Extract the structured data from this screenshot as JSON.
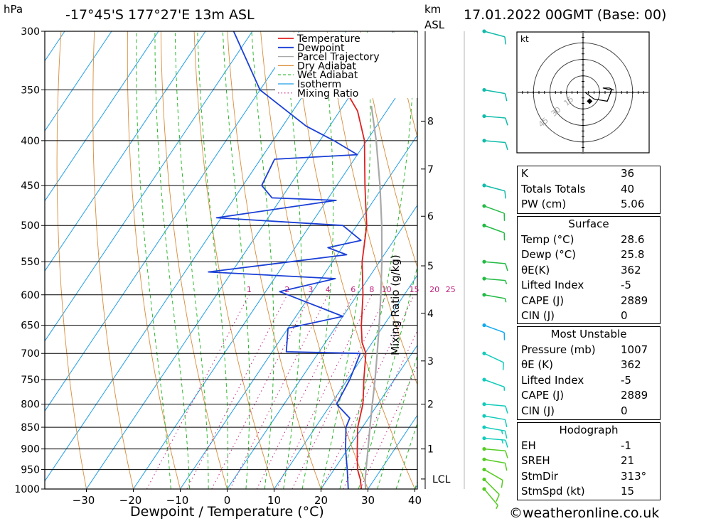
{
  "header": {
    "pressure_unit": "hPa",
    "location": "-17°45'S  177°27'E  13m  ASL",
    "height_unit_km": "km",
    "height_unit_asl": "ASL",
    "datetime": "17.01.2022  00GMT  (Base: 00)"
  },
  "footer": {
    "copyright": "©weatheronline.co.uk"
  },
  "chart_data": {
    "type": "line",
    "xlabel": "Dewpoint / Temperature (°C)",
    "ylabel": "Mixing Ratio (g/kg)",
    "pressure_levels": [
      300,
      350,
      400,
      450,
      500,
      550,
      600,
      650,
      700,
      750,
      800,
      850,
      900,
      950,
      1000
    ],
    "temp_ticks": [
      -30,
      -20,
      -10,
      0,
      10,
      20,
      30,
      40
    ],
    "km_ticks": [
      {
        "label": "8",
        "p": 380
      },
      {
        "label": "7",
        "p": 431
      },
      {
        "label": "6",
        "p": 488
      },
      {
        "label": "5",
        "p": 556
      },
      {
        "label": "4",
        "p": 630
      },
      {
        "label": "3",
        "p": 714
      },
      {
        "label": "2",
        "p": 800
      },
      {
        "label": "1",
        "p": 900
      }
    ],
    "lcl": {
      "label": "LCL",
      "p": 974
    },
    "mixing_ratio_labels": [
      "1",
      "2",
      "3",
      "4",
      "6",
      "8",
      "10",
      "15",
      "20",
      "25"
    ],
    "mixing_ratio_values": [
      1,
      2,
      3,
      4,
      6,
      8,
      10,
      15,
      20,
      25
    ],
    "legend": [
      "Temperature",
      "Dewpoint",
      "Parcel Trajectory",
      "Dry Adiabat",
      "Wet Adiabat",
      "Isotherm",
      "Mixing Ratio"
    ],
    "colors": {
      "temperature": "#e02020",
      "dewpoint": "#1a3fd6",
      "parcel": "#a9a9a9",
      "dry_adiabat": "#d98c3a",
      "wet_adiabat": "#19b319",
      "isotherm": "#1f9ee6",
      "mixing_ratio": "#c0207f"
    },
    "temperature_profile": [
      {
        "p": 1000,
        "t": 28.6
      },
      {
        "p": 975,
        "t": 27.0
      },
      {
        "p": 950,
        "t": 25.0
      },
      {
        "p": 925,
        "t": 23.5
      },
      {
        "p": 900,
        "t": 22.0
      },
      {
        "p": 850,
        "t": 19.0
      },
      {
        "p": 800,
        "t": 16.8
      },
      {
        "p": 775,
        "t": 15.2
      },
      {
        "p": 750,
        "t": 13.5
      },
      {
        "p": 700,
        "t": 10.2
      },
      {
        "p": 680,
        "t": 7.8
      },
      {
        "p": 650,
        "t": 5.2
      },
      {
        "p": 600,
        "t": 1.2
      },
      {
        "p": 550,
        "t": -3.7
      },
      {
        "p": 500,
        "t": -7.9
      },
      {
        "p": 470,
        "t": -11.5
      },
      {
        "p": 450,
        "t": -14.0
      },
      {
        "p": 400,
        "t": -20.5
      },
      {
        "p": 370,
        "t": -26.2
      },
      {
        "p": 355,
        "t": -30.4
      }
    ],
    "dewpoint_profile": [
      {
        "p": 1000,
        "t": 25.8
      },
      {
        "p": 950,
        "t": 22.8
      },
      {
        "p": 900,
        "t": 19.5
      },
      {
        "p": 850,
        "t": 16.5
      },
      {
        "p": 830,
        "t": 16.0
      },
      {
        "p": 800,
        "t": 11.2
      },
      {
        "p": 750,
        "t": 10.5
      },
      {
        "p": 700,
        "t": 9.0
      },
      {
        "p": 697,
        "t": -7.0
      },
      {
        "p": 655,
        "t": -10.0
      },
      {
        "p": 635,
        "t": 0.0
      },
      {
        "p": 595,
        "t": -17.0
      },
      {
        "p": 575,
        "t": -7.0
      },
      {
        "p": 565,
        "t": -35.0
      },
      {
        "p": 540,
        "t": -8.0
      },
      {
        "p": 530,
        "t": -13.0
      },
      {
        "p": 520,
        "t": -7.0
      },
      {
        "p": 500,
        "t": -13.0
      },
      {
        "p": 490,
        "t": -41.0
      },
      {
        "p": 468,
        "t": -18.0
      },
      {
        "p": 465,
        "t": -32.0
      },
      {
        "p": 450,
        "t": -36.0
      },
      {
        "p": 420,
        "t": -37.0
      },
      {
        "p": 415,
        "t": -20.0
      },
      {
        "p": 400,
        "t": -27.0
      },
      {
        "p": 385,
        "t": -35.0
      },
      {
        "p": 350,
        "t": -50.0
      },
      {
        "p": 300,
        "t": -64.0
      }
    ],
    "parcel_profile": [
      {
        "p": 1000,
        "t": 29.5
      },
      {
        "p": 974,
        "t": 28.0
      },
      {
        "p": 950,
        "t": 26.8
      },
      {
        "p": 900,
        "t": 24.3
      },
      {
        "p": 850,
        "t": 21.6
      },
      {
        "p": 800,
        "t": 18.8
      },
      {
        "p": 750,
        "t": 15.9
      },
      {
        "p": 700,
        "t": 12.6
      },
      {
        "p": 650,
        "t": 9.0
      },
      {
        "p": 600,
        "t": 5.0
      },
      {
        "p": 550,
        "t": 0.5
      },
      {
        "p": 500,
        "t": -4.7
      },
      {
        "p": 450,
        "t": -10.8
      },
      {
        "p": 400,
        "t": -18.0
      },
      {
        "p": 365,
        "t": -24.0
      }
    ],
    "winds": [
      {
        "p": 1000,
        "dir": 140,
        "spd": 8
      },
      {
        "p": 975,
        "dir": 135,
        "spd": 10
      },
      {
        "p": 950,
        "dir": 120,
        "spd": 12
      },
      {
        "p": 925,
        "dir": 100,
        "spd": 12
      },
      {
        "p": 900,
        "dir": 95,
        "spd": 14
      },
      {
        "p": 875,
        "dir": 95,
        "spd": 15
      },
      {
        "p": 850,
        "dir": 100,
        "spd": 15
      },
      {
        "p": 825,
        "dir": 100,
        "spd": 14
      },
      {
        "p": 800,
        "dir": 95,
        "spd": 12
      },
      {
        "p": 750,
        "dir": 110,
        "spd": 8
      },
      {
        "p": 700,
        "dir": 115,
        "spd": 10
      },
      {
        "p": 650,
        "dir": 110,
        "spd": 10
      },
      {
        "p": 600,
        "dir": 100,
        "spd": 6
      },
      {
        "p": 575,
        "dir": 95,
        "spd": 6
      },
      {
        "p": 550,
        "dir": 95,
        "spd": 10
      },
      {
        "p": 500,
        "dir": 110,
        "spd": 12
      },
      {
        "p": 475,
        "dir": 110,
        "spd": 14
      },
      {
        "p": 450,
        "dir": 105,
        "spd": 12
      },
      {
        "p": 400,
        "dir": 95,
        "spd": 14
      },
      {
        "p": 375,
        "dir": 95,
        "spd": 12
      },
      {
        "p": 350,
        "dir": 100,
        "spd": 10
      },
      {
        "p": 300,
        "dir": 105,
        "spd": 10
      }
    ],
    "hodograph": {
      "unit_label": "kt",
      "ring_labels": [
        "15",
        "30",
        "45"
      ],
      "ring_values": [
        15,
        30,
        45
      ],
      "trace": [
        {
          "u": 1,
          "v": 0
        },
        {
          "u": 5,
          "v": -3
        },
        {
          "u": 11,
          "v": -4
        },
        {
          "u": 13,
          "v": 1
        },
        {
          "u": 9,
          "v": 2
        },
        {
          "u": 12,
          "v": 2
        },
        {
          "u": 14,
          "v": 1
        }
      ],
      "storm_motion": {
        "u": 3,
        "v": -4
      }
    }
  },
  "indices": {
    "rows": [
      {
        "label": "K",
        "value": "36"
      },
      {
        "label": "Totals Totals",
        "value": "40"
      },
      {
        "label": "PW (cm)",
        "value": "5.06"
      }
    ]
  },
  "surface": {
    "title": "Surface",
    "rows": [
      {
        "label": "Temp (°C)",
        "value": "28.6"
      },
      {
        "label": "Dewp (°C)",
        "value": "25.8"
      },
      {
        "label": "θE(K)",
        "value": "362"
      },
      {
        "label": "Lifted Index",
        "value": "-5"
      },
      {
        "label": "CAPE (J)",
        "value": "2889"
      },
      {
        "label": "CIN (J)",
        "value": "0"
      }
    ]
  },
  "most_unstable": {
    "title": "Most Unstable",
    "rows": [
      {
        "label": "Pressure (mb)",
        "value": "1007"
      },
      {
        "label": "θE (K)",
        "value": "362"
      },
      {
        "label": "Lifted Index",
        "value": "-5"
      },
      {
        "label": "CAPE (J)",
        "value": "2889"
      },
      {
        "label": "CIN (J)",
        "value": "0"
      }
    ]
  },
  "hodograph_table": {
    "title": "Hodograph",
    "rows": [
      {
        "label": "EH",
        "value": "-1"
      },
      {
        "label": "SREH",
        "value": "21"
      },
      {
        "label": "StmDir",
        "value": "313°"
      },
      {
        "label": "StmSpd (kt)",
        "value": "15"
      }
    ]
  }
}
